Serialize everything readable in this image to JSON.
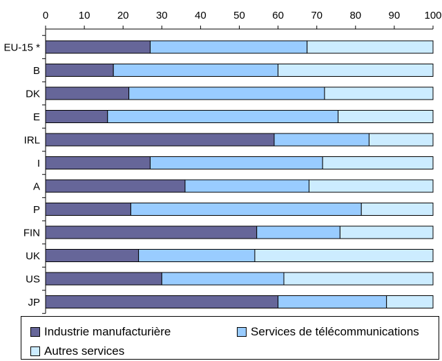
{
  "chart_data": {
    "type": "bar",
    "orientation": "horizontal",
    "stacked": true,
    "categories": [
      "EU-15 *",
      "B",
      "DK",
      "E",
      "IRL",
      "I",
      "A",
      "P",
      "FIN",
      "UK",
      "US",
      "JP"
    ],
    "series": [
      {
        "name": "Industrie manufacturière",
        "color": "#666699",
        "values": [
          27,
          17.5,
          21.5,
          16,
          59,
          27,
          36,
          22,
          54.5,
          24,
          30,
          60
        ]
      },
      {
        "name": "Services de télécommunications",
        "color": "#99ccff",
        "values": [
          40.5,
          42.5,
          50.5,
          59.5,
          24.5,
          44.5,
          32,
          59.5,
          21.5,
          30,
          31.5,
          28
        ]
      },
      {
        "name": "Autres services",
        "color": "#ccecff",
        "values": [
          32.5,
          40,
          28,
          24.5,
          16.5,
          28.5,
          32,
          18.5,
          24,
          46,
          38.5,
          12
        ]
      }
    ],
    "xlim": [
      0,
      100
    ],
    "xticks": [
      "0",
      "10",
      "20",
      "30",
      "40",
      "50",
      "60",
      "70",
      "80",
      "90",
      "100"
    ],
    "xaxis_position": "top",
    "grid": false,
    "legend_position": "bottom"
  }
}
